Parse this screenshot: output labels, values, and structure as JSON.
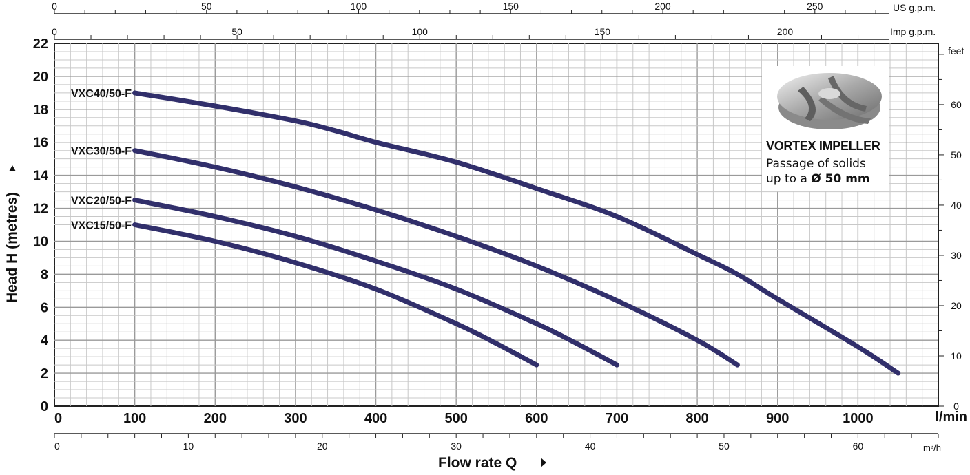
{
  "chart_data": {
    "type": "line",
    "x_unit": "l/min",
    "y_unit": "",
    "xlim": [
      0,
      1100
    ],
    "ylim": [
      0,
      22
    ],
    "x_ticks": [
      "0",
      "100",
      "200",
      "300",
      "400",
      "500",
      "600",
      "700",
      "800",
      "900",
      "1000"
    ],
    "y_ticks": [
      "0",
      "2",
      "4",
      "6",
      "8",
      "10",
      "12",
      "14",
      "16",
      "18",
      "20",
      "22"
    ],
    "ylabel": "Head H  (metres)",
    "xlabel": "Flow rate  Q",
    "top_axis_us": {
      "unit": "US g.p.m.",
      "ticks": [
        "0",
        "50",
        "100",
        "150",
        "200",
        "250"
      ]
    },
    "top_axis_imp": {
      "unit": "Imp g.p.m.",
      "ticks": [
        "0",
        "50",
        "100",
        "150",
        "200"
      ]
    },
    "bottom_axis_m3h": {
      "unit": "m³/h",
      "ticks": [
        "0",
        "10",
        "20",
        "30",
        "40",
        "50",
        "60"
      ]
    },
    "right_axis_feet": {
      "unit": "feet",
      "ticks": [
        "0",
        "10",
        "20",
        "30",
        "40",
        "50",
        "60"
      ]
    },
    "series": [
      {
        "name": "VXC40/50-F",
        "x": [
          100,
          200,
          300,
          350,
          400,
          500,
          600,
          700,
          800,
          850,
          900,
          1000,
          1050
        ],
        "y": [
          19.0,
          18.2,
          17.3,
          16.7,
          16.0,
          14.8,
          13.2,
          11.5,
          9.2,
          8.0,
          6.5,
          3.6,
          2.0
        ]
      },
      {
        "name": "VXC30/50-F",
        "x": [
          100,
          200,
          300,
          400,
          500,
          600,
          700,
          800,
          850
        ],
        "y": [
          15.5,
          14.5,
          13.3,
          11.9,
          10.3,
          8.5,
          6.4,
          4.0,
          2.5
        ]
      },
      {
        "name": "VXC20/50-F",
        "x": [
          100,
          200,
          300,
          400,
          500,
          600,
          650,
          700
        ],
        "y": [
          12.5,
          11.5,
          10.3,
          8.8,
          7.1,
          5.0,
          3.8,
          2.5
        ]
      },
      {
        "name": "VXC15/50-F",
        "x": [
          100,
          200,
          300,
          400,
          500,
          550,
          600
        ],
        "y": [
          11.0,
          10.0,
          8.7,
          7.1,
          5.0,
          3.8,
          2.5
        ]
      }
    ],
    "line_color": "#312f6b",
    "grid": true,
    "legend": "none"
  },
  "impeller": {
    "title": "VORTEX IMPELLER",
    "line1": "Passage of solids",
    "line2_prefix": "up to a ",
    "line2_bold": "Ø 50 mm"
  }
}
